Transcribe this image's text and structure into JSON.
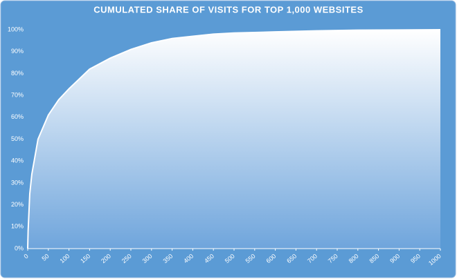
{
  "chart_data": {
    "type": "area",
    "title": "CUMULATED SHARE OF VISITS FOR TOP 1,000 WEBSITES",
    "x": [
      0,
      1,
      5,
      10,
      25,
      50,
      75,
      100,
      150,
      200,
      250,
      300,
      350,
      400,
      450,
      500,
      600,
      700,
      800,
      900,
      1000
    ],
    "values": [
      0,
      8,
      25,
      34,
      50,
      61,
      68,
      73,
      82,
      87,
      91,
      94,
      96,
      97,
      98,
      98.5,
      99,
      99.5,
      99.8,
      99.9,
      100
    ],
    "color": "#ffffff",
    "xlim": [
      0,
      1000
    ],
    "xticks": [
      0,
      50,
      100,
      150,
      200,
      250,
      300,
      350,
      400,
      450,
      500,
      550,
      600,
      650,
      700,
      750,
      800,
      850,
      900,
      950,
      1000
    ],
    "ylim": [
      0,
      100
    ],
    "yticks": [
      {
        "value": 0,
        "label": "0%"
      },
      {
        "value": 10,
        "label": "10%"
      },
      {
        "value": 20,
        "label": "20%"
      },
      {
        "value": 30,
        "label": "30%"
      },
      {
        "value": 40,
        "label": "40%"
      },
      {
        "value": 50,
        "label": "50%"
      },
      {
        "value": 60,
        "label": "60%"
      },
      {
        "value": 70,
        "label": "70%"
      },
      {
        "value": 80,
        "label": "80%"
      },
      {
        "value": 90,
        "label": "90%"
      },
      {
        "value": 100,
        "label": "100%"
      }
    ],
    "grid": false
  }
}
